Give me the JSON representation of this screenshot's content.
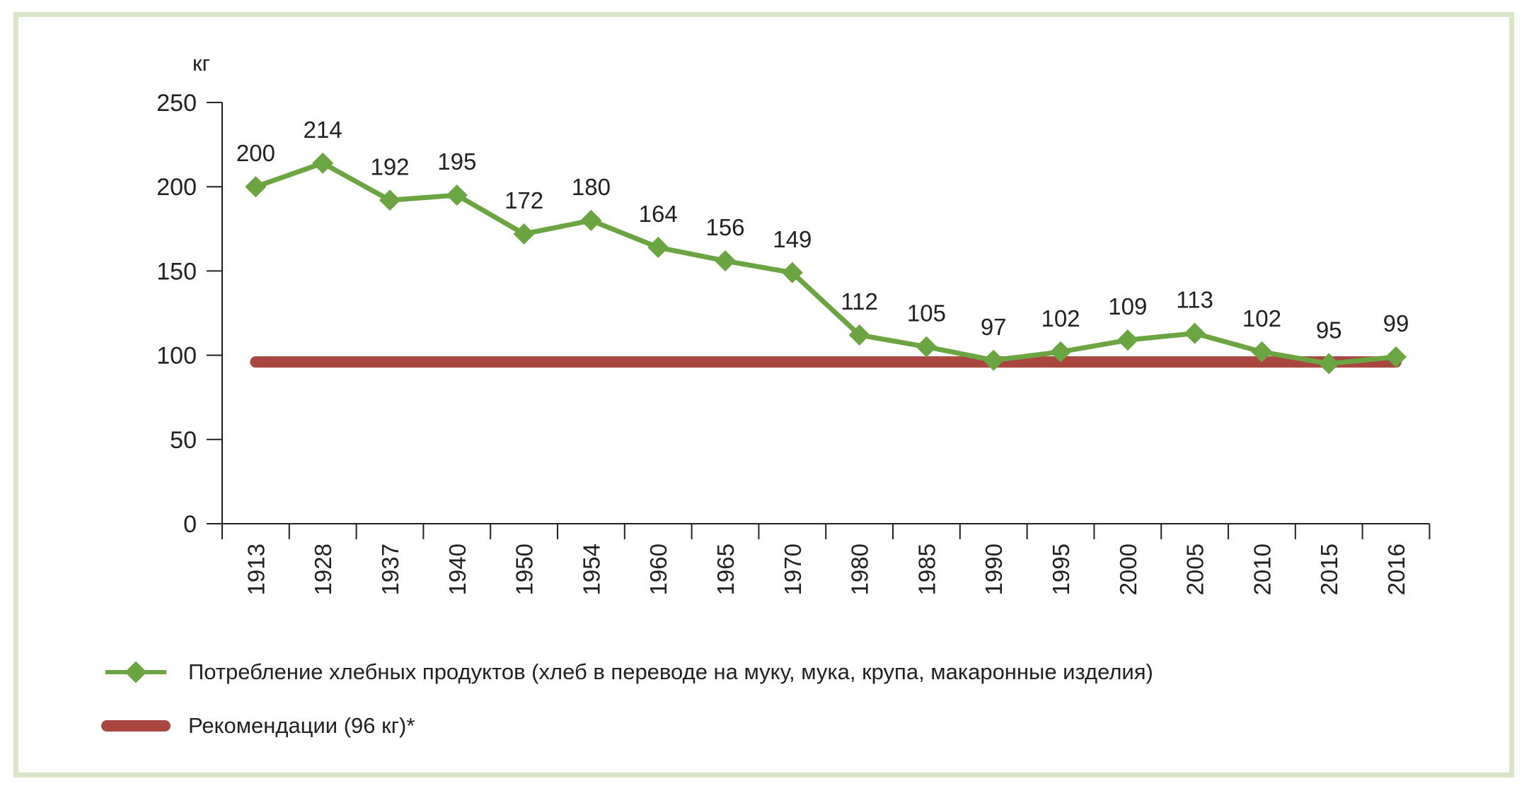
{
  "chart_data": {
    "type": "line",
    "ylabel": "кг",
    "ylim": [
      0,
      250
    ],
    "yticks": [
      0,
      50,
      100,
      150,
      200,
      250
    ],
    "categories": [
      "1913",
      "1928",
      "1937",
      "1940",
      "1950",
      "1954",
      "1960",
      "1965",
      "1970",
      "1980",
      "1985",
      "1990",
      "1995",
      "2000",
      "2005",
      "2010",
      "2015",
      "2016"
    ],
    "series": [
      {
        "name": "Потребление хлебных продуктов (хлеб в переводе на муку, мука, крупа, макаронные изделия)",
        "values": [
          200,
          214,
          192,
          195,
          172,
          180,
          164,
          156,
          149,
          112,
          105,
          97,
          102,
          109,
          113,
          102,
          95,
          99
        ],
        "color": "#6aa542",
        "marker": "diamond",
        "data_labels": true
      },
      {
        "name": "Рекомендации (96 кг)*",
        "values": [
          96,
          96,
          96,
          96,
          96,
          96,
          96,
          96,
          96,
          96,
          96,
          96,
          96,
          96,
          96,
          96,
          96,
          96
        ],
        "color": "#a8463f"
      }
    ],
    "grid": false,
    "legend_position": "bottom-left"
  },
  "frame_color": "#d8e5c6"
}
